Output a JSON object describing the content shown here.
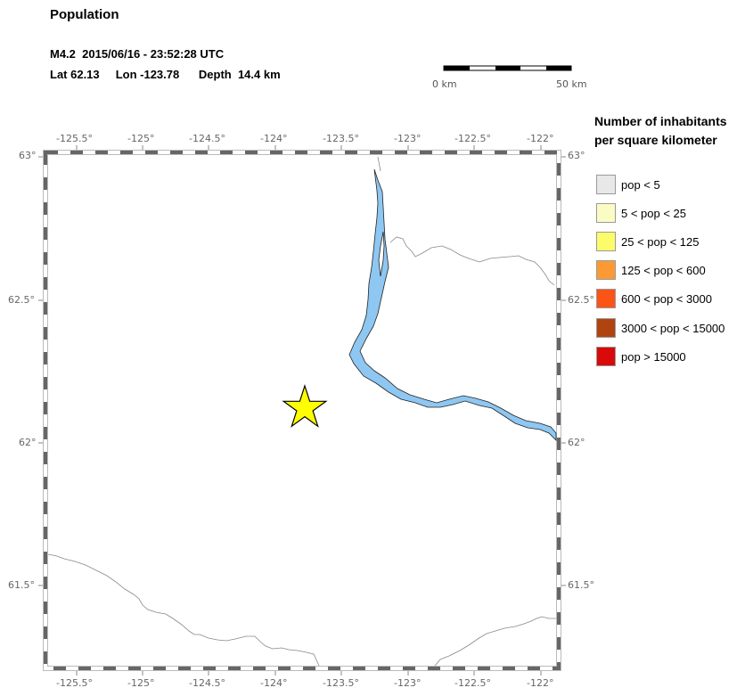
{
  "header": {
    "title": "Population",
    "event_line": "M4.2  2015/06/16 - 23:52:28 UTC",
    "location_line": "Lat 62.13     Lon -123.78      Depth  14.4 km"
  },
  "scale_bar": {
    "start_label": "0 km",
    "end_label": "50 km"
  },
  "map": {
    "lon_range": [
      -125.72,
      -121.88
    ],
    "lat_range": [
      61.2,
      63.0
    ],
    "lon_ticks": [
      "-125.5°",
      "-125°",
      "-124.5°",
      "-124°",
      "-123.5°",
      "-123°",
      "-122.5°",
      "-122°"
    ],
    "lat_ticks": [
      "63°",
      "62.5°",
      "62°",
      "61.5°"
    ],
    "epicenter": {
      "lat": 62.13,
      "lon": -123.78,
      "marker": "star-icon",
      "color": "#ffff00"
    },
    "water_color": "#8ec7f2"
  },
  "legend": {
    "title_line1": "Number of inhabitants",
    "title_line2": "per square kilometer",
    "items": [
      {
        "label": "pop < 5",
        "color": "#e8e8e8"
      },
      {
        "label": "5 < pop < 25",
        "color": "#fbfbc4"
      },
      {
        "label": "25 < pop < 125",
        "color": "#fcfc6a"
      },
      {
        "label": "125 < pop < 600",
        "color": "#fb9a35"
      },
      {
        "label": "600 < pop < 3000",
        "color": "#fb5417"
      },
      {
        "label": "3000 < pop < 15000",
        "color": "#b04411"
      },
      {
        "label": "pop > 15000",
        "color": "#d80a0a"
      }
    ]
  }
}
